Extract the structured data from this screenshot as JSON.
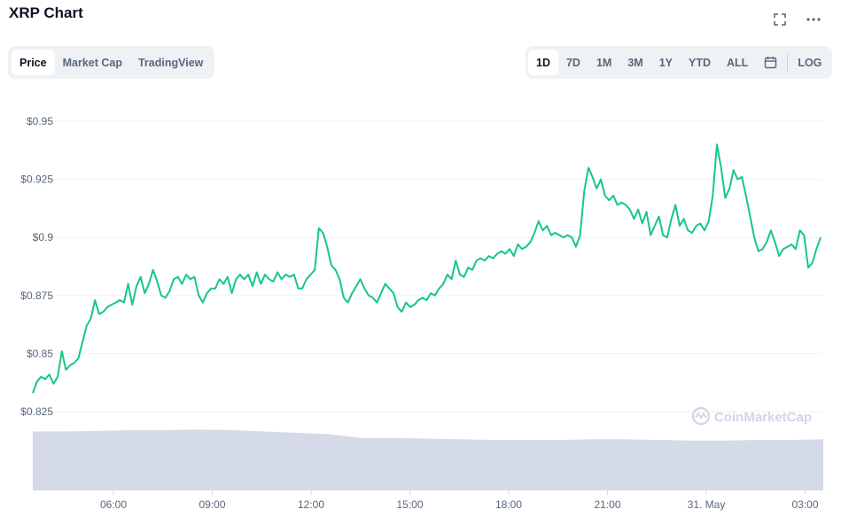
{
  "header": {
    "title": "XRP Chart",
    "fullscreen_icon": "fullscreen-icon",
    "more_icon": "more-horizontal-icon"
  },
  "chart_type_tabs": [
    {
      "label": "Price",
      "active": true
    },
    {
      "label": "Market Cap",
      "active": false
    },
    {
      "label": "TradingView",
      "active": false
    }
  ],
  "range_tabs": [
    {
      "label": "1D",
      "active": true
    },
    {
      "label": "7D",
      "active": false
    },
    {
      "label": "1M",
      "active": false
    },
    {
      "label": "3M",
      "active": false
    },
    {
      "label": "1Y",
      "active": false
    },
    {
      "label": "YTD",
      "active": false
    },
    {
      "label": "ALL",
      "active": false
    }
  ],
  "calendar_icon": "calendar-icon",
  "log_label": "LOG",
  "watermark": "CoinMarketCap",
  "colors": {
    "line": "#16c784",
    "volume": "#cfd6e4",
    "grid": "#eff2f5",
    "text_muted": "#58667e"
  },
  "chart_data": {
    "type": "line",
    "series": [
      {
        "values": [
          0.833,
          0.838,
          0.84,
          0.839,
          0.841,
          0.837,
          0.84,
          0.851,
          0.843,
          0.845,
          0.846,
          0.848,
          0.855,
          0.862,
          0.865,
          0.873,
          0.867,
          0.868,
          0.87,
          0.871,
          0.872,
          0.873,
          0.872,
          0.88,
          0.871,
          0.879,
          0.883,
          0.876,
          0.88,
          0.886,
          0.881,
          0.875,
          0.874,
          0.877,
          0.882,
          0.883,
          0.88,
          0.884,
          0.882,
          0.883,
          0.875,
          0.872,
          0.876,
          0.878,
          0.878,
          0.882,
          0.88,
          0.883,
          0.876,
          0.882,
          0.884,
          0.882,
          0.884,
          0.879,
          0.885,
          0.88,
          0.884,
          0.882,
          0.881,
          0.885,
          0.882,
          0.884,
          0.883,
          0.884,
          0.878,
          0.878,
          0.882,
          0.884,
          0.886,
          0.904,
          0.902,
          0.896,
          0.888,
          0.886,
          0.882,
          0.874,
          0.872,
          0.876,
          0.879,
          0.882,
          0.878,
          0.875,
          0.874,
          0.872,
          0.876,
          0.88,
          0.878,
          0.876,
          0.87,
          0.868,
          0.872,
          0.87,
          0.871,
          0.873,
          0.874,
          0.873,
          0.876,
          0.875,
          0.878,
          0.88,
          0.884,
          0.882,
          0.89,
          0.884,
          0.883,
          0.887,
          0.886,
          0.89,
          0.891,
          0.89,
          0.892,
          0.891,
          0.893,
          0.894,
          0.893,
          0.895,
          0.892,
          0.897,
          0.895,
          0.896,
          0.898,
          0.902,
          0.907,
          0.903,
          0.905,
          0.901,
          0.902,
          0.901,
          0.9,
          0.901,
          0.9,
          0.896,
          0.901,
          0.92,
          0.93,
          0.926,
          0.921,
          0.925,
          0.918,
          0.916,
          0.918,
          0.914,
          0.915,
          0.914,
          0.912,
          0.908,
          0.912,
          0.906,
          0.911,
          0.901,
          0.905,
          0.909,
          0.901,
          0.9,
          0.908,
          0.914,
          0.905,
          0.908,
          0.903,
          0.902,
          0.905,
          0.906,
          0.903,
          0.907,
          0.918,
          0.94,
          0.93,
          0.917,
          0.921,
          0.929,
          0.925,
          0.926,
          0.918,
          0.909,
          0.9,
          0.894,
          0.895,
          0.898,
          0.903,
          0.898,
          0.892,
          0.895,
          0.896,
          0.897,
          0.895,
          0.903,
          0.901,
          0.887,
          0.889,
          0.895,
          0.9
        ]
      }
    ],
    "x_ticks": [
      "06:00",
      "09:00",
      "12:00",
      "15:00",
      "18:00",
      "21:00",
      "31. May",
      "03:00"
    ],
    "y_ticks": [
      "$0.95",
      "$0.925",
      "$0.9",
      "$0.875",
      "$0.85",
      "$0.825"
    ],
    "ylim": [
      0.825,
      0.95
    ],
    "volume_values": [
      0.9,
      0.9,
      0.91,
      0.92,
      0.92,
      0.93,
      0.92,
      0.9,
      0.88,
      0.86,
      0.8,
      0.8,
      0.79,
      0.78,
      0.77,
      0.77,
      0.77,
      0.78,
      0.78,
      0.77,
      0.76,
      0.76,
      0.77,
      0.77,
      0.78
    ],
    "grid": true,
    "title": "",
    "xlabel": "",
    "ylabel": ""
  }
}
